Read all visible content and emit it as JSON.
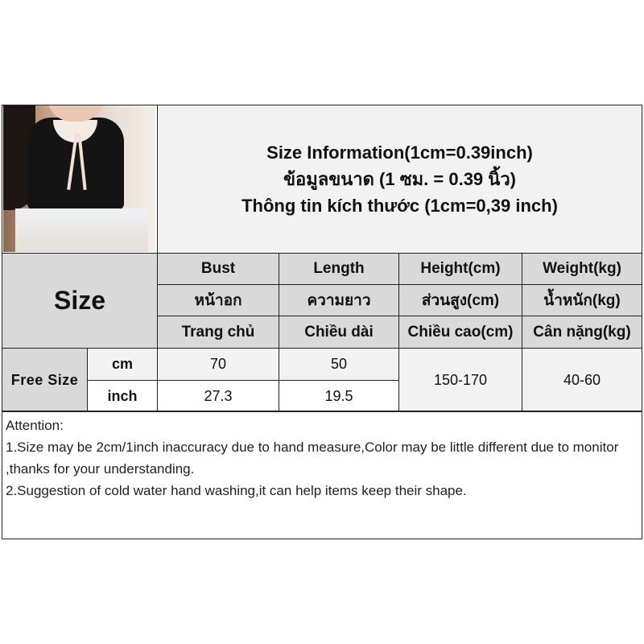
{
  "title_lines": [
    "Size Information(1cm=0.39inch)",
    "ข้อมูลขนาด (1 ซม. = 0.39 นิ้ว)",
    "Thông tin kích thước (1cm=0,39 inch)"
  ],
  "size_label": "Size",
  "columns": [
    {
      "en": "Bust",
      "th": "หน้าอก",
      "vi": "Trang chủ"
    },
    {
      "en": "Length",
      "th": "ความยาว",
      "vi": "Chiều dài"
    },
    {
      "en": "Height(cm)",
      "th": "ส่วนสูง(cm)",
      "vi": "Chiều cao(cm)"
    },
    {
      "en": "Weight(kg)",
      "th": "น้ำหนัก(kg)",
      "vi": "Cân nặng(kg)"
    }
  ],
  "row": {
    "size": "Free Size",
    "units": [
      "cm",
      "inch"
    ],
    "bust": [
      "70",
      "27.3"
    ],
    "length": [
      "50",
      "19.5"
    ],
    "height": "150-170",
    "weight": "40-60"
  },
  "attention": {
    "heading": "Attention:",
    "lines": [
      "1.Size may be 2cm/1inch inaccuracy due to hand measure,Color may be little different due to monitor ,thanks for your understanding.",
      "2.Suggestion of cold water hand washing,it can help items keep their shape."
    ]
  },
  "colors": {
    "header_gray": "#d9d9d9",
    "light_gray": "#f2f2f2",
    "border": "#222222"
  }
}
